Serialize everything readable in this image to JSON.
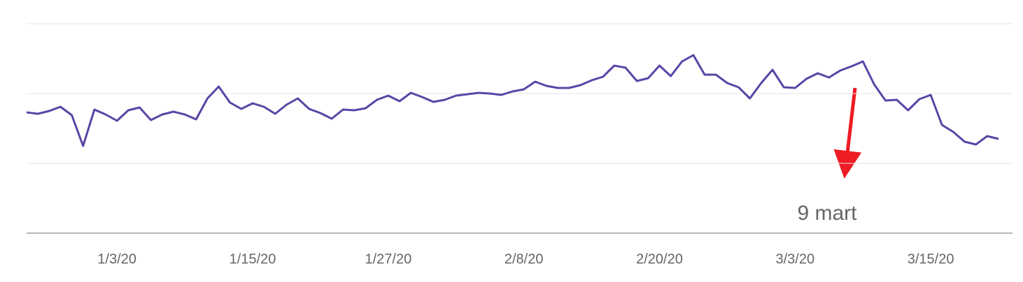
{
  "chart_data": {
    "type": "line",
    "categories": [
      null,
      null,
      null,
      null,
      null,
      null,
      null,
      null,
      "1/3/20",
      null,
      null,
      null,
      null,
      null,
      null,
      null,
      null,
      null,
      null,
      null,
      "1/15/20",
      null,
      null,
      null,
      null,
      null,
      null,
      null,
      null,
      null,
      null,
      null,
      "1/27/20",
      null,
      null,
      null,
      null,
      null,
      null,
      null,
      null,
      null,
      null,
      null,
      "2/8/20",
      null,
      null,
      null,
      null,
      null,
      null,
      null,
      null,
      null,
      null,
      null,
      "2/20/20",
      null,
      null,
      null,
      null,
      null,
      null,
      null,
      null,
      null,
      null,
      null,
      "3/3/20",
      null,
      null,
      null,
      null,
      null,
      null,
      null,
      null,
      null,
      null,
      null,
      "3/15/20",
      null,
      null,
      null,
      null,
      null,
      null
    ],
    "values": [
      1.73,
      1.71,
      1.75,
      1.81,
      1.69,
      1.25,
      1.77,
      1.7,
      1.61,
      1.76,
      1.8,
      1.62,
      1.7,
      1.74,
      1.7,
      1.63,
      1.93,
      2.1,
      1.87,
      1.78,
      1.86,
      1.81,
      1.71,
      1.84,
      1.93,
      1.78,
      1.72,
      1.64,
      1.77,
      1.76,
      1.79,
      1.91,
      1.97,
      1.89,
      2.01,
      1.95,
      1.88,
      1.91,
      1.97,
      1.99,
      2.01,
      2.0,
      1.98,
      2.03,
      2.06,
      2.17,
      2.11,
      2.08,
      2.08,
      2.12,
      2.19,
      2.24,
      2.4,
      2.37,
      2.18,
      2.22,
      2.4,
      2.25,
      2.46,
      2.55,
      2.27,
      2.27,
      2.15,
      2.09,
      1.93,
      2.15,
      2.34,
      2.09,
      2.08,
      2.21,
      2.29,
      2.23,
      2.33,
      2.39,
      2.46,
      2.13,
      1.9,
      1.91,
      1.76,
      1.92,
      1.98,
      1.55,
      1.45,
      1.31,
      1.27,
      1.39,
      1.35
    ],
    "color": "#5b45a6",
    "ylim": [
      0,
      3
    ],
    "gridlines": [
      1,
      2,
      3
    ],
    "annotation": "9 mart"
  }
}
